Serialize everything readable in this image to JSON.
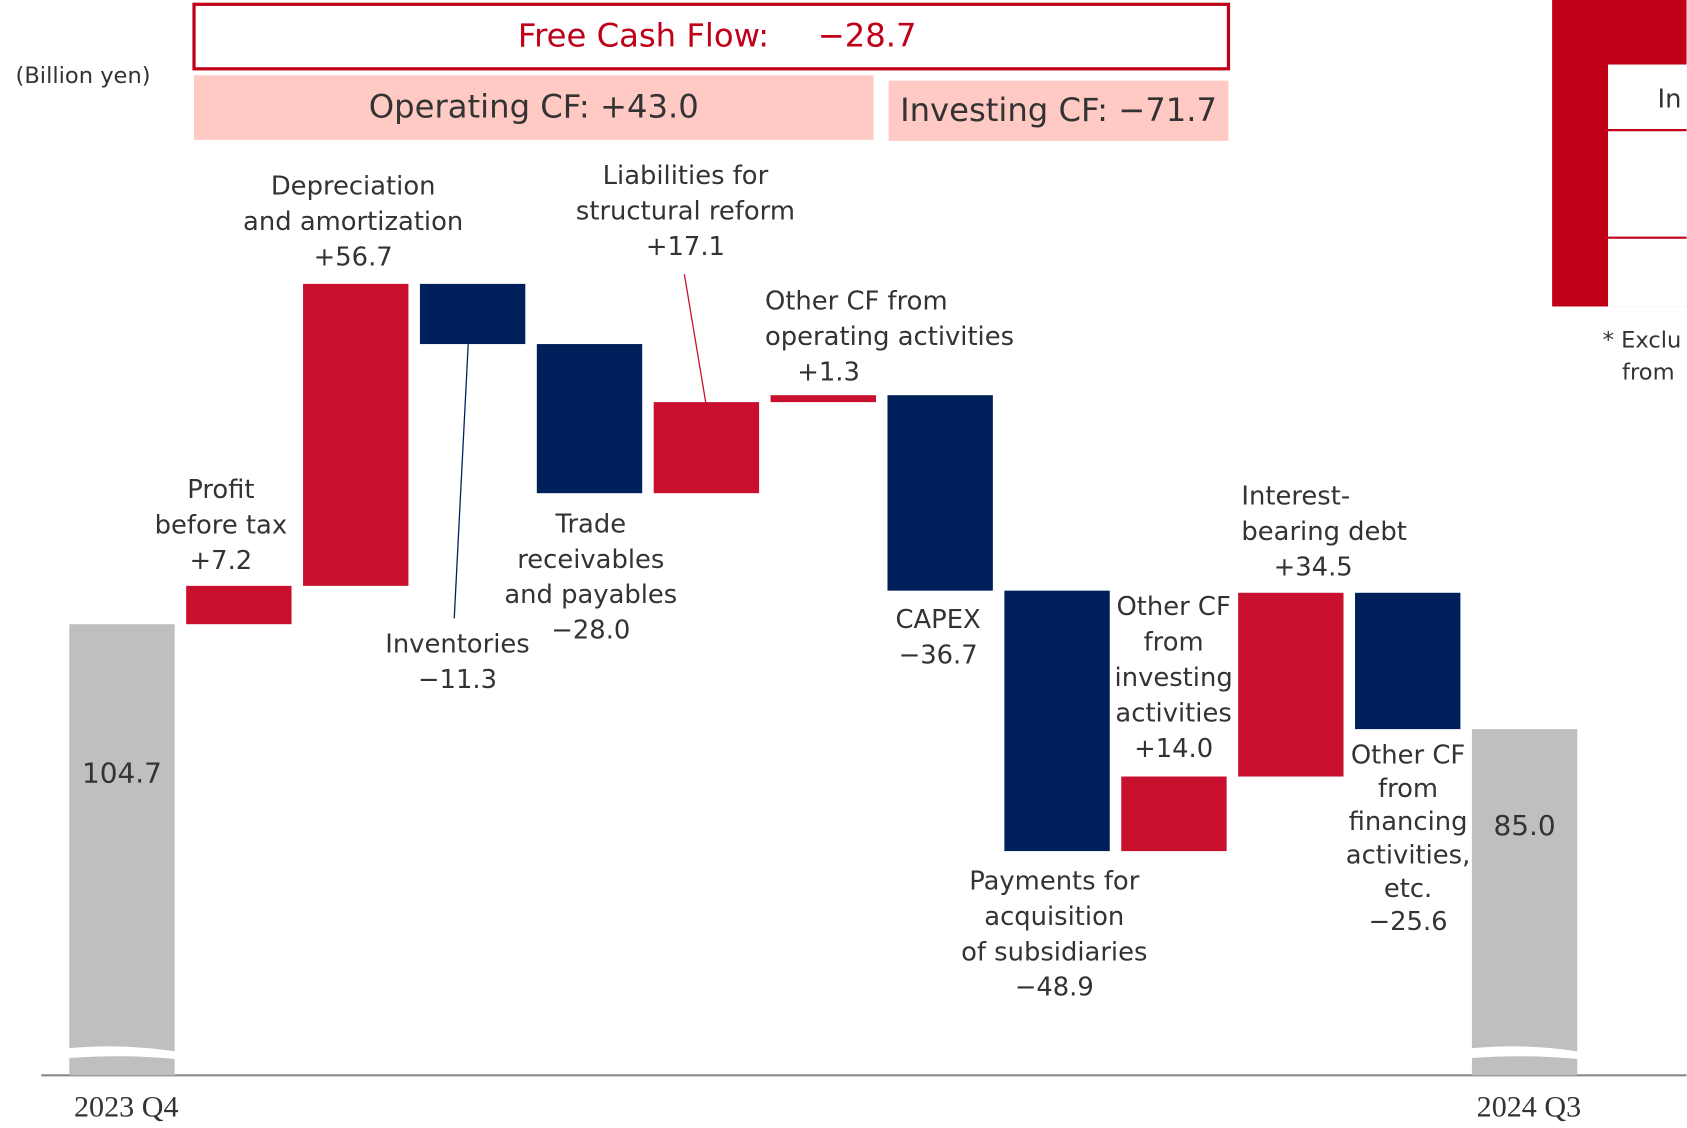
{
  "chart_data": {
    "type": "waterfall",
    "y_label": "(Billion yen)",
    "annotations": [
      "Free Cash Flow:",
      "−28.7",
      "Operating CF: +43.0",
      "Investing CF: −71.7"
    ],
    "categories": [
      "2023 Q4",
      "Profit\nbefore tax",
      "Depreciation\nand amortization",
      "Inventories",
      "Trade\nreceivables\nand payables",
      "Liabilities for\nstructural reform",
      "Other CF from\noperating activities",
      "CAPEX",
      "Payments for\nacquisition\nof subsidiaries",
      "Other CF\nfrom\ninvesting\nactivities",
      "Interest-\nbearing debt",
      "Other CF\nfrom\nfinancing\nactivities,\netc.",
      "2024 Q3"
    ],
    "values": [
      104.7,
      7.2,
      56.7,
      -11.3,
      -28.0,
      17.1,
      1.3,
      -36.7,
      -48.9,
      14.0,
      34.5,
      -25.6,
      85.0
    ],
    "value_labels": [
      "104.7",
      "+7.2",
      "+56.7",
      "−11.3",
      "−28.0",
      "+17.1",
      "+1.3",
      "−36.7",
      "−48.9",
      "+14.0",
      "+34.5",
      "−25.6",
      "85.0"
    ],
    "measure": [
      "total",
      "relative",
      "relative",
      "relative",
      "relative",
      "relative",
      "relative",
      "relative",
      "relative",
      "relative",
      "relative",
      "relative",
      "total"
    ],
    "colors": {
      "increase": "#c8102e",
      "decrease": "#00205b",
      "total": "#bfbfbf"
    },
    "ylim": [
      20,
      190
    ]
  },
  "side_panel": {
    "texts": [
      "In",
      "* Exclu",
      "from"
    ]
  }
}
